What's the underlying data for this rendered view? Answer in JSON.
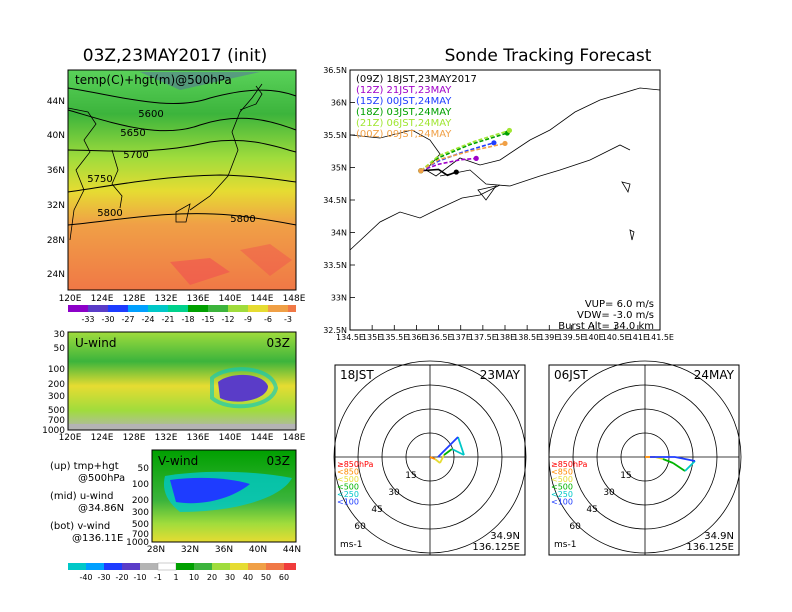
{
  "left_title": "03Z,23MAY2017 (init)",
  "right_title": "Sonde Tracking Forecast",
  "upper_panel": {
    "label": "temp(C)+hgt(m)@500hPa",
    "contours": [
      "5600",
      "5650",
      "5700",
      "5750",
      "5800",
      "5800"
    ],
    "lat_ticks": [
      "44N",
      "40N",
      "36N",
      "32N",
      "28N",
      "24N"
    ],
    "lon_ticks": [
      "120E",
      "124E",
      "128E",
      "132E",
      "136E",
      "140E",
      "144E",
      "148E"
    ],
    "colorbar": [
      "-33",
      "-30",
      "-27",
      "-24",
      "-21",
      "-18",
      "-15",
      "-12",
      "-9",
      "-6",
      "-3"
    ]
  },
  "u_panel": {
    "label": "U-wind",
    "time": "03Z",
    "p_ticks": [
      "30",
      "50",
      "100",
      "200",
      "300",
      "500",
      "700",
      "1000"
    ],
    "lon_ticks": [
      "120E",
      "124E",
      "128E",
      "132E",
      "136E",
      "140E",
      "144E",
      "148E"
    ]
  },
  "v_panel": {
    "label": "V-wind",
    "time": "03Z",
    "p_ticks": [
      "50",
      "100",
      "200",
      "300",
      "500",
      "700",
      "1000"
    ],
    "lat_ticks": [
      "28N",
      "32N",
      "36N",
      "40N",
      "44N"
    ]
  },
  "panel_notes": [
    {
      "a": "(up)  tmp+hgt",
      "b": "@500hPa"
    },
    {
      "a": "(mid)  u-wind",
      "b": "@34.86N"
    },
    {
      "a": "(bot)  v-wind",
      "b": "@136.11E"
    }
  ],
  "wind_colorbar": [
    "-40",
    "-30",
    "-20",
    "-10",
    "-1",
    "1",
    "10",
    "20",
    "30",
    "40",
    "50",
    "60"
  ],
  "track_map": {
    "legend": [
      {
        "text": "(09Z)  18JST,23MAY2017",
        "color": "#000000"
      },
      {
        "text": "(12Z)  21JST,23MAY",
        "color": "#a000c8"
      },
      {
        "text": "(15Z)  00JST,24MAY",
        "color": "#1e3cff"
      },
      {
        "text": "(18Z)  03JST,24MAY",
        "color": "#00a000"
      },
      {
        "text": "(21Z)  06JST,24MAY",
        "color": "#a0e632"
      },
      {
        "text": "(00Z)  09JST,24MAY",
        "color": "#f0a046"
      }
    ],
    "lat_ticks": [
      "36.5N",
      "36N",
      "35.5N",
      "35N",
      "34.5N",
      "34N",
      "33.5N",
      "33N",
      "32.5N"
    ],
    "lon_ticks": [
      "134.5E",
      "135E",
      "135.5E",
      "136E",
      "136.5E",
      "137E",
      "137.5E",
      "138E",
      "138.5E",
      "139E",
      "139.5E",
      "140E",
      "140.5E",
      "141E",
      "141.5E"
    ],
    "params": [
      "VUP=  6.0  m/s",
      "VDW=  -3.0  m/s",
      "Burst Alt=  34.0  km"
    ]
  },
  "hodographs": [
    {
      "time": "18JST",
      "date": "23MAY",
      "lat": "34.9N",
      "lon": "136.125E",
      "unit": "ms-1"
    },
    {
      "time": "06JST",
      "date": "24MAY",
      "lat": "34.9N",
      "lon": "136.125E",
      "unit": "ms-1"
    }
  ],
  "hodo_rings": [
    "15",
    "30",
    "45",
    "60"
  ],
  "hodo_levels": [
    {
      "text": "≥850hPa",
      "color": "#ff0000"
    },
    {
      "text": "<850",
      "color": "#ff8c00"
    },
    {
      "text": "<500",
      "color": "#e6dc32"
    },
    {
      "text": "<500",
      "color": "#00b400"
    },
    {
      "text": "<250",
      "color": "#00c8c8"
    },
    {
      "text": "<100",
      "color": "#1e3cff"
    }
  ],
  "chart_data": {
    "type": "line",
    "title": "Sonde Tracking Forecast",
    "xlabel": "",
    "ylabel": "",
    "xlim": [
      134.5,
      141.5
    ],
    "ylim": [
      32.5,
      36.5
    ],
    "series": [
      {
        "name": "(09Z)  18JST,23MAY2017",
        "color": "#000000",
        "x": [
          136.1,
          136.5,
          136.7,
          136.9
        ],
        "y": [
          34.95,
          34.97,
          34.88,
          34.93
        ]
      },
      {
        "name": "(12Z)  21JST,23MAY",
        "color": "#a000c8",
        "x": [
          136.1,
          136.5,
          137.0,
          137.35
        ],
        "y": [
          34.95,
          35.05,
          35.12,
          35.14
        ]
      },
      {
        "name": "(15Z)  00JST,24MAY",
        "color": "#1e3cff",
        "x": [
          136.1,
          136.5,
          137.1,
          137.75
        ],
        "y": [
          34.95,
          35.1,
          35.25,
          35.38
        ]
      },
      {
        "name": "(18Z)  03JST,24MAY",
        "color": "#00a000",
        "x": [
          136.1,
          136.5,
          137.2,
          138.05
        ],
        "y": [
          34.95,
          35.15,
          35.35,
          35.53
        ]
      },
      {
        "name": "(21Z)  06JST,24MAY",
        "color": "#a0e632",
        "x": [
          136.1,
          136.5,
          137.3,
          138.1
        ],
        "y": [
          34.95,
          35.18,
          35.4,
          35.57
        ]
      },
      {
        "name": "(00Z)  09JST,24MAY",
        "color": "#f0a046",
        "x": [
          136.1,
          136.5,
          137.2,
          138.0
        ],
        "y": [
          34.95,
          35.12,
          35.25,
          35.37
        ]
      }
    ]
  }
}
